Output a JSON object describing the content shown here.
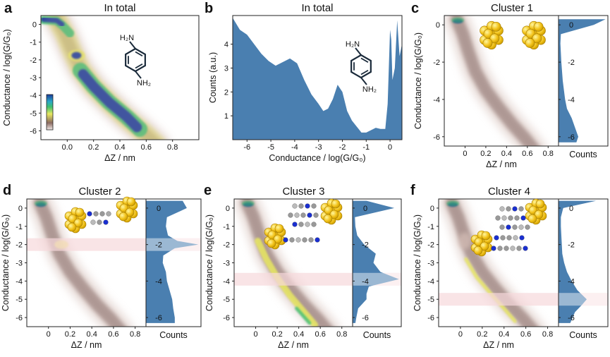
{
  "colors": {
    "hist_fill": "#4a7fb0",
    "band": "#f6d9db",
    "band_overlay": "#b8c8dc",
    "density_dark": "#6b4a44",
    "density_light": "#d4bdb6",
    "hot_yellow": "#e8e860",
    "hot_green": "#3fbf6f",
    "hot_blue": "#1b3b9a",
    "molecule_ring": "#1a2a3a"
  },
  "panels": [
    {
      "letter": "a",
      "title": "In total",
      "xlabel": "ΔZ / nm",
      "ylabel": "Conductance / log(G/G₀)",
      "xticks": [
        "0.0",
        "0.2",
        "0.4",
        "0.6",
        "0.8"
      ],
      "yticks": [
        "0",
        "-1",
        "-2",
        "-3",
        "-4",
        "-5",
        "-6"
      ],
      "molecule": {
        "top_label": "H₂N",
        "bottom_label": "NH₂"
      }
    },
    {
      "letter": "b",
      "title": "In total",
      "xlabel": "Conductance / log(G/G₀)",
      "ylabel": "Counts (a.u.)",
      "xticks": [
        "-6",
        "-5",
        "-4",
        "-3",
        "-2",
        "-1",
        "0"
      ],
      "yticks": [
        "1",
        "2",
        "3",
        "4"
      ],
      "molecule": {
        "top_label": "H₂N",
        "bottom_label": "NH₂"
      }
    },
    {
      "letter": "c",
      "title": "Cluster 1",
      "xlabel": "ΔZ / nm",
      "ylabel": "Conductance / log(G/G₀)",
      "counts_label": "Counts",
      "xticks": [
        "0",
        "0.2",
        "0.4",
        "0.6",
        "0.8"
      ],
      "yticks": [
        "0",
        "-2",
        "-4",
        "-6"
      ],
      "hist_yticks": [
        "0",
        "-2",
        "-4",
        "-6"
      ]
    },
    {
      "letter": "d",
      "title": "Cluster 2",
      "xlabel": "ΔZ / nm",
      "ylabel": "Conductance / log(G/G₀)",
      "counts_label": "Counts",
      "xticks": [
        "0",
        "0.2",
        "0.4",
        "0.6",
        "0.8"
      ],
      "yticks": [
        "0",
        "-1",
        "-2",
        "-3",
        "-4",
        "-5",
        "-6"
      ],
      "hist_yticks": [
        "0",
        "-2",
        "-4",
        "-6"
      ]
    },
    {
      "letter": "e",
      "title": "Cluster 3",
      "xlabel": "ΔZ / nm",
      "ylabel": "Conductance / log(G/G₀)",
      "counts_label": "Counts",
      "xticks": [
        "0",
        "0.2",
        "0.4",
        "0.6",
        "0.8"
      ],
      "yticks": [
        "0",
        "-1",
        "-2",
        "-3",
        "-4",
        "-5",
        "-6"
      ],
      "hist_yticks": [
        "0",
        "-2",
        "-4",
        "-6"
      ]
    },
    {
      "letter": "f",
      "title": "Cluster 4",
      "xlabel": "ΔZ / nm",
      "ylabel": "Conductance / log(G/G₀)",
      "counts_label": "Counts",
      "xticks": [
        "0",
        "0.2",
        "0.4",
        "0.6",
        "0.8"
      ],
      "yticks": [
        "0",
        "-1",
        "-2",
        "-3",
        "-4",
        "-5",
        "-6"
      ],
      "hist_yticks": [
        "0",
        "-2",
        "-4",
        "-6"
      ]
    }
  ],
  "chart_data": [
    {
      "panel": "a",
      "type": "heatmap",
      "title": "In total",
      "xlabel": "ΔZ / nm",
      "ylabel": "Conductance / log(G/G₀)",
      "xlim": [
        -0.2,
        1.0
      ],
      "ylim": [
        -6.5,
        0.5
      ],
      "ridges": [
        {
          "x": [
            -0.15,
            -0.05,
            0.0,
            0.05
          ],
          "y": [
            0.1,
            0.05,
            -0.3,
            -0.7
          ]
        },
        {
          "x": [
            0.05,
            0.15,
            0.3,
            0.5,
            0.62
          ],
          "y": [
            -2.0,
            -3.2,
            -4.2,
            -5.1,
            -5.8
          ]
        }
      ],
      "colorbar": true
    },
    {
      "panel": "b",
      "type": "area",
      "title": "In total",
      "xlabel": "Conductance / log(G/G₀)",
      "ylabel": "Counts (a.u.)",
      "xlim": [
        -6.6,
        0.5
      ],
      "ylim": [
        0,
        5.2
      ],
      "x": [
        -6.6,
        -6.3,
        -6.0,
        -5.7,
        -5.4,
        -5.1,
        -4.8,
        -4.5,
        -4.2,
        -3.9,
        -3.6,
        -3.3,
        -3.0,
        -2.8,
        -2.6,
        -2.4,
        -2.2,
        -2.0,
        -1.8,
        -1.6,
        -1.4,
        -1.2,
        -1.0,
        -0.8,
        -0.6,
        -0.4,
        -0.2,
        -0.1,
        0.0,
        0.05,
        0.1,
        0.2,
        0.3,
        0.4,
        0.5
      ],
      "y": [
        5.1,
        4.6,
        4.4,
        4.0,
        3.6,
        3.3,
        3.1,
        3.25,
        3.4,
        3.2,
        2.5,
        1.9,
        1.5,
        1.2,
        1.3,
        1.7,
        2.3,
        2.0,
        1.2,
        0.8,
        0.55,
        0.3,
        0.3,
        0.4,
        0.5,
        0.45,
        0.45,
        1.5,
        4.6,
        4.2,
        2.5,
        3.0,
        5.0,
        3.5,
        4.0
      ]
    },
    {
      "panel": "c",
      "type": "heatmap",
      "title": "Cluster 1",
      "xlabel": "ΔZ / nm",
      "ylabel": "Conductance / log(G/G₀)",
      "xlim": [
        -0.2,
        0.9
      ],
      "ylim": [
        -6.5,
        0.5
      ],
      "histogram": {
        "y": [
          0.3,
          0,
          -0.5,
          -1,
          -2,
          -3,
          -4,
          -4.5,
          -5,
          -5.5,
          -6,
          -6.3
        ],
        "counts": [
          1.0,
          0.75,
          0.05,
          0.04,
          0.06,
          0.09,
          0.14,
          0.18,
          0.28,
          0.35,
          0.42,
          0.38
        ]
      }
    },
    {
      "panel": "d",
      "type": "heatmap",
      "title": "Cluster 2",
      "xlabel": "ΔZ / nm",
      "ylabel": "Conductance / log(G/G₀)",
      "xlim": [
        -0.2,
        0.9
      ],
      "ylim": [
        -6.5,
        0.5
      ],
      "highlight_y": -2.0,
      "histogram": {
        "y": [
          0.4,
          0,
          -0.5,
          -1,
          -1.5,
          -1.8,
          -2,
          -2.2,
          -2.6,
          -3,
          -3.5,
          -4,
          -4.5,
          -5,
          -5.5,
          -6,
          -6.3
        ],
        "counts": [
          0.7,
          0.78,
          0.4,
          0.38,
          0.42,
          0.6,
          1.0,
          0.55,
          0.33,
          0.32,
          0.38,
          0.4,
          0.45,
          0.5,
          0.52,
          0.55,
          0.55
        ]
      }
    },
    {
      "panel": "e",
      "type": "heatmap",
      "title": "Cluster 3",
      "xlabel": "ΔZ / nm",
      "ylabel": "Conductance / log(G/G₀)",
      "xlim": [
        -0.2,
        0.9
      ],
      "ylim": [
        -6.5,
        0.5
      ],
      "highlight_y": -3.9,
      "histogram": {
        "y": [
          0.4,
          0,
          -0.5,
          -1,
          -1.5,
          -2,
          -2.5,
          -3,
          -3.5,
          -3.9,
          -4.3,
          -4.7,
          -5,
          -5.5,
          -6,
          -6.3
        ],
        "counts": [
          0.3,
          0.9,
          0.05,
          0.06,
          0.1,
          0.25,
          0.5,
          0.45,
          0.6,
          1.0,
          0.35,
          0.3,
          0.3,
          0.12,
          0.08,
          0.06
        ]
      }
    },
    {
      "panel": "f",
      "type": "heatmap",
      "title": "Cluster 4",
      "xlabel": "ΔZ / nm",
      "ylabel": "Conductance / log(G/G₀)",
      "xlim": [
        -0.2,
        0.9
      ],
      "ylim": [
        -6.5,
        0.5
      ],
      "highlight_y": -5.0,
      "histogram": {
        "y": [
          0.4,
          0,
          -0.5,
          -1,
          -1.5,
          -2,
          -2.5,
          -3,
          -3.5,
          -4,
          -4.5,
          -5,
          -5.3,
          -5.7,
          -6,
          -6.3
        ],
        "counts": [
          0.8,
          0.1,
          0.05,
          0.05,
          0.06,
          0.07,
          0.08,
          0.12,
          0.18,
          0.28,
          0.4,
          0.6,
          0.5,
          0.35,
          0.3,
          0.25
        ]
      }
    }
  ]
}
